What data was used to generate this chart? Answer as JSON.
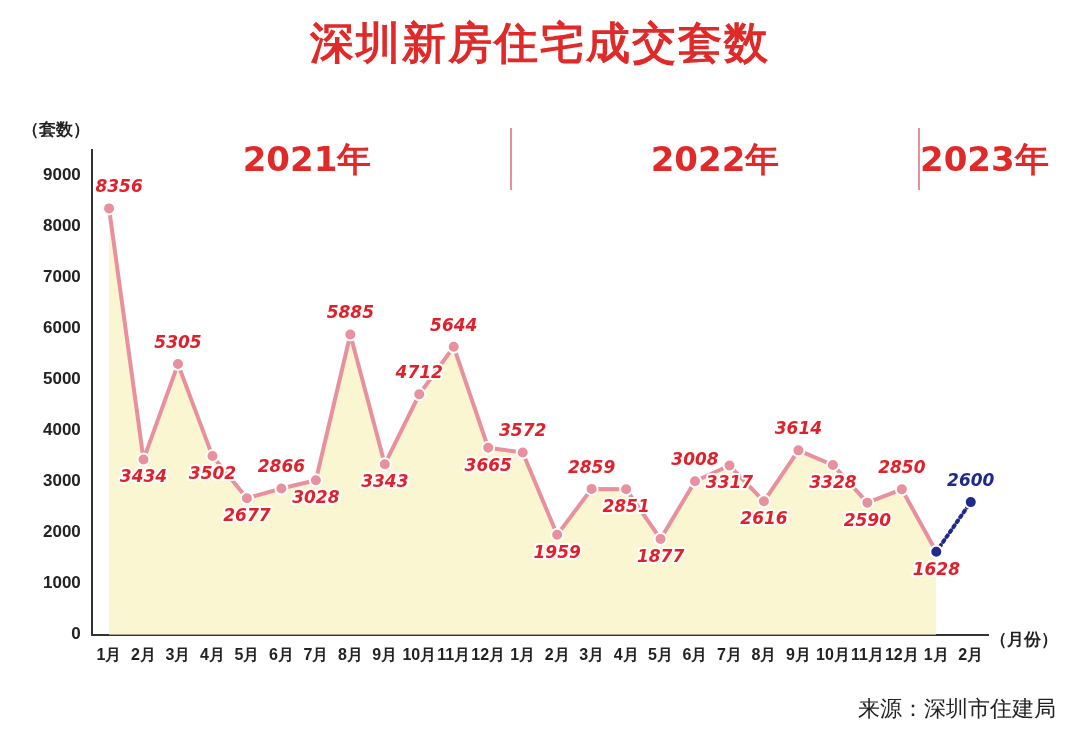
{
  "chart_data": {
    "type": "line",
    "title": "深圳新房住宅成交套数",
    "ylabel": "（套数）",
    "xlabel": "（月份）",
    "categories": [
      "1月",
      "2月",
      "3月",
      "4月",
      "5月",
      "6月",
      "7月",
      "8月",
      "9月",
      "10月",
      "11月",
      "12月",
      "1月",
      "2月",
      "3月",
      "4月",
      "5月",
      "6月",
      "7月",
      "8月",
      "9月",
      "10月",
      "11月",
      "12月",
      "1月",
      "2月"
    ],
    "series": [
      {
        "type": "area",
        "color": "#e8909e",
        "marker": "circle",
        "values": [
          8356,
          3434,
          5305,
          3502,
          2677,
          2866,
          3028,
          5885,
          3343,
          4712,
          5644,
          3665,
          3572,
          1959,
          2859,
          2851,
          1877,
          3008,
          3317,
          2616,
          3614,
          3328,
          2590,
          2850,
          1628,
          null
        ],
        "value_labels": [
          "8356",
          "3434",
          "5305",
          "3502",
          "2677",
          "2866",
          "3028",
          "5885",
          "3343",
          "4712",
          "5644",
          "3665",
          "3572",
          "1959",
          "2859",
          "2851",
          "1877",
          "3008",
          "3317",
          "2616",
          "3614",
          "3328",
          "2590",
          "2850",
          "1628",
          null
        ]
      },
      {
        "type": "line",
        "color": "#1f2a8a",
        "marker": "circle",
        "line_style": "dotted",
        "values": [
          null,
          null,
          null,
          null,
          null,
          null,
          null,
          null,
          null,
          null,
          null,
          null,
          null,
          null,
          null,
          null,
          null,
          null,
          null,
          null,
          null,
          null,
          null,
          null,
          1628,
          2600
        ],
        "value_labels": [
          null,
          null,
          null,
          null,
          null,
          null,
          null,
          null,
          null,
          null,
          null,
          null,
          null,
          null,
          null,
          null,
          null,
          null,
          null,
          null,
          null,
          null,
          null,
          null,
          null,
          "2600"
        ]
      }
    ],
    "ylim": [
      0,
      9500
    ],
    "yticks": [
      0,
      1000,
      2000,
      3000,
      4000,
      5000,
      6000,
      7000,
      8000,
      9000
    ],
    "grid": false,
    "legend": false,
    "annotations": [
      "2021年",
      "2022年",
      "2023年",
      "来源：深圳市住建局"
    ]
  }
}
